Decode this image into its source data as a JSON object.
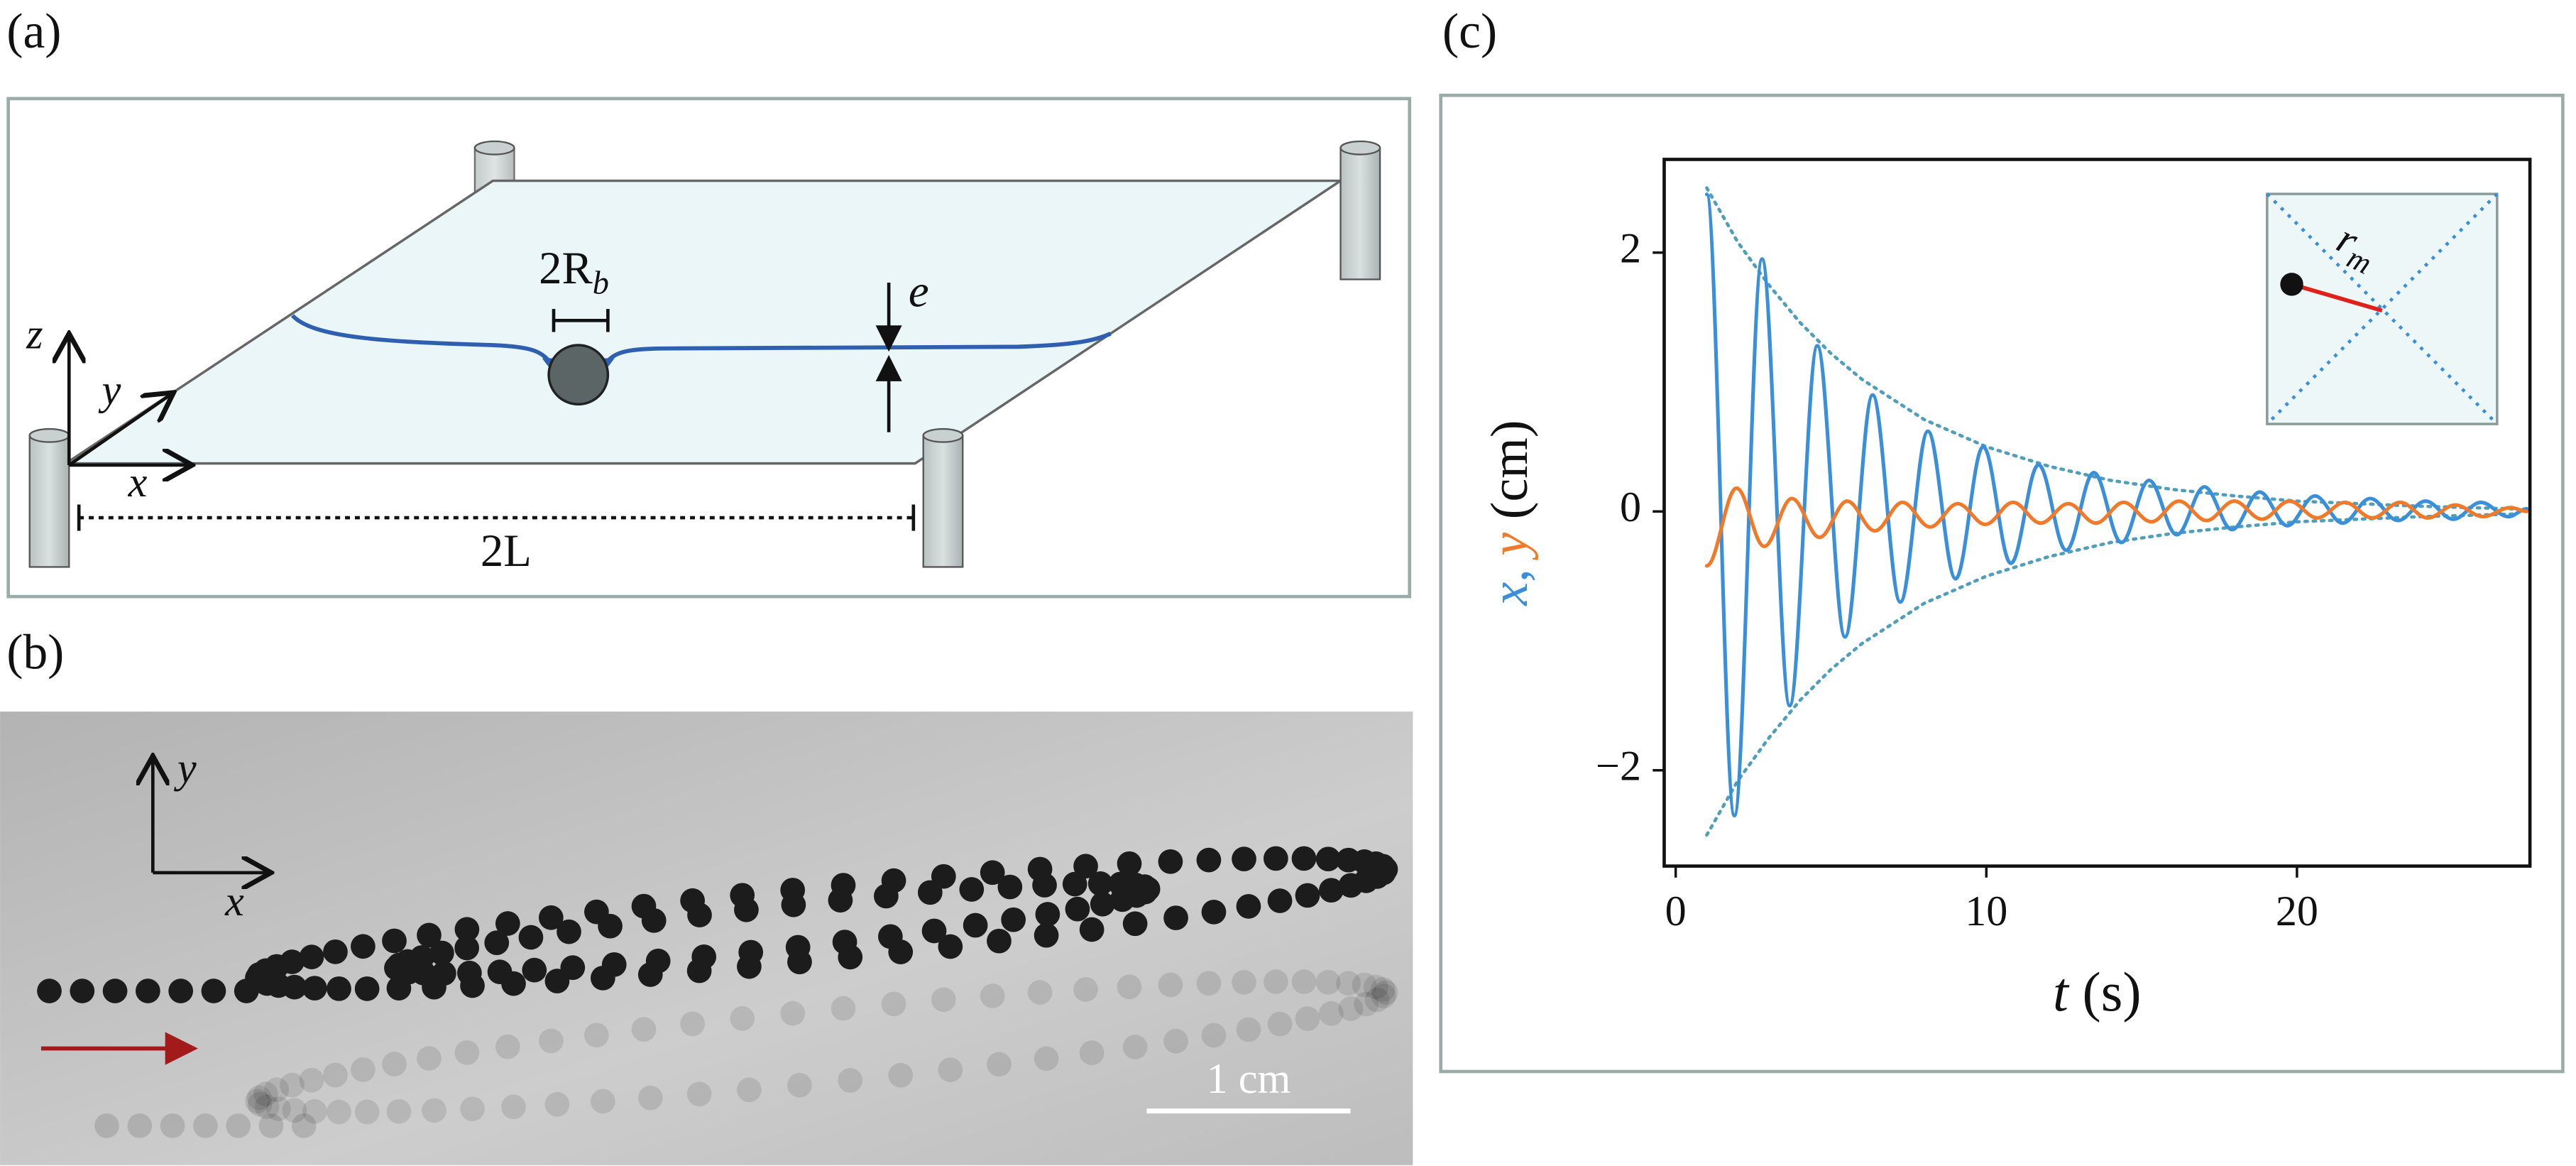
{
  "panel_a": {
    "label": "(a)",
    "bead_label": {
      "text": "2R",
      "subscript": "b"
    },
    "thickness_label": "e",
    "axis_labels": {
      "z": "z",
      "y": "y",
      "x": "x"
    },
    "length_label": "2L"
  },
  "panel_b": {
    "label": "(b)",
    "axis_labels": {
      "y": "y",
      "x": "x"
    },
    "scale_bar": "1 cm"
  },
  "panel_c": {
    "label": "(c)",
    "inset": {
      "label": "r",
      "subscript": "m"
    }
  },
  "chart_data": {
    "type": "line",
    "xlabel": [
      "t",
      "(s)"
    ],
    "ylabel": [
      "x",
      ",",
      "y",
      "(cm)"
    ],
    "xlim": [
      -0.37,
      27.5
    ],
    "ylim": [
      -2.74,
      2.72
    ],
    "xticks": [
      0,
      10,
      20
    ],
    "yticks": [
      {
        "value": -2,
        "label": "−2"
      },
      0,
      2
    ],
    "series": [
      {
        "color": "#3a8fdb",
        "x": [
          1.0,
          1.89,
          2.78,
          3.67,
          4.56,
          5.45,
          6.34,
          7.23,
          8.12,
          9.01,
          9.9,
          10.79,
          11.68,
          12.57,
          13.46,
          14.35,
          15.24,
          16.13,
          17.02,
          17.91,
          18.8,
          19.69,
          20.58,
          21.47,
          22.36,
          23.25,
          24.14,
          25.03,
          25.92,
          26.81,
          27.4
        ],
        "values": [
          2.45,
          -2.35,
          1.95,
          -1.5,
          1.28,
          -0.97,
          0.9,
          -0.7,
          0.62,
          -0.52,
          0.5,
          -0.4,
          0.36,
          -0.3,
          0.3,
          -0.24,
          0.24,
          -0.18,
          0.19,
          -0.14,
          0.15,
          -0.11,
          0.12,
          -0.09,
          0.1,
          -0.07,
          0.08,
          -0.06,
          0.07,
          -0.04,
          0.02
        ]
      },
      {
        "color": "#f07a2a",
        "x": [
          1.0,
          1.96,
          2.85,
          3.74,
          4.63,
          5.52,
          6.41,
          7.3,
          8.19,
          9.08,
          9.97,
          10.86,
          11.75,
          12.64,
          13.53,
          14.42,
          15.31,
          16.2,
          17.09,
          17.98,
          18.87,
          19.76,
          20.65,
          21.54,
          22.43,
          23.32,
          24.21,
          25.1,
          25.99,
          26.88,
          27.4
        ],
        "values": [
          -0.42,
          0.18,
          -0.27,
          0.1,
          -0.2,
          0.08,
          -0.15,
          0.07,
          -0.12,
          0.06,
          -0.1,
          0.07,
          -0.09,
          0.06,
          -0.09,
          0.07,
          -0.08,
          0.08,
          -0.07,
          0.08,
          -0.06,
          0.08,
          -0.05,
          0.07,
          -0.05,
          0.07,
          -0.05,
          0.05,
          -0.04,
          0.03,
          0.0
        ]
      },
      {
        "color": "#4f9fba",
        "style": "dotted",
        "x": [
          1,
          2,
          3,
          4,
          5,
          6,
          8,
          10,
          12,
          14,
          16,
          18,
          20,
          22,
          24,
          27
        ],
        "values": [
          2.5,
          2.08,
          1.75,
          1.46,
          1.22,
          1.02,
          0.71,
          0.5,
          0.35,
          0.24,
          0.17,
          0.12,
          0.08,
          0.06,
          0.04,
          0.02
        ]
      },
      {
        "color": "#4f9fba",
        "style": "dotted",
        "x": [
          1,
          2,
          3,
          4,
          5,
          6,
          8,
          10,
          12,
          14,
          16,
          18,
          20,
          22,
          24,
          27
        ],
        "values": [
          -2.5,
          -2.08,
          -1.75,
          -1.46,
          -1.22,
          -1.02,
          -0.71,
          -0.5,
          -0.35,
          -0.24,
          -0.17,
          -0.12,
          -0.08,
          -0.06,
          -0.04,
          -0.02
        ]
      }
    ]
  }
}
